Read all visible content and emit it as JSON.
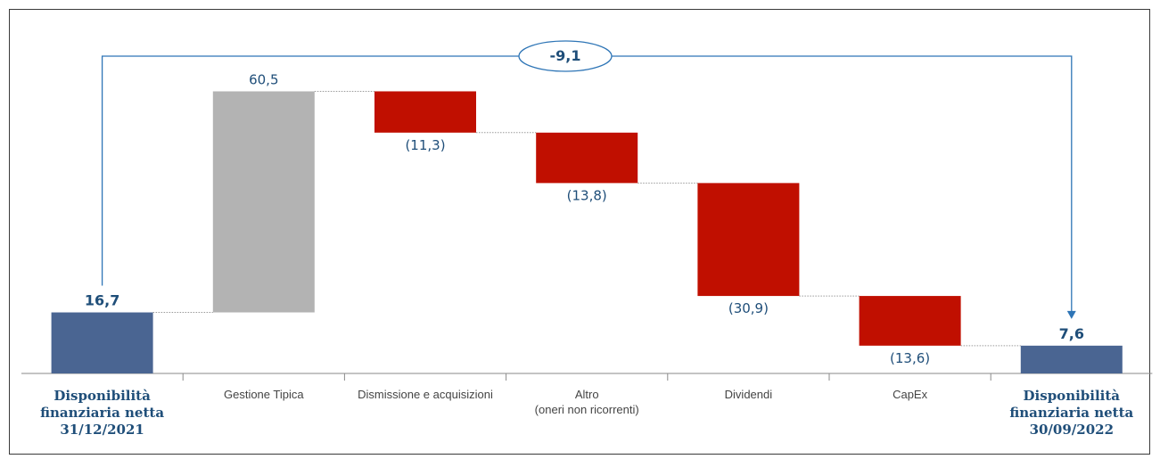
{
  "chart_data": {
    "type": "bar",
    "subtype": "waterfall",
    "categories": [
      [
        "Disponibilità",
        "finanziaria netta",
        "31/12/2021"
      ],
      [
        "Gestione Tipica"
      ],
      [
        "Dismissione e acquisizioni"
      ],
      [
        "Altro",
        "(oneri non ricorrenti)"
      ],
      [
        "Dividendi"
      ],
      [
        "CapEx"
      ],
      [
        "Disponibilità",
        "finanziaria netta",
        "30/09/2022"
      ]
    ],
    "values": [
      16.7,
      60.5,
      -11.3,
      -13.8,
      -30.9,
      -13.6,
      7.6
    ],
    "value_labels": [
      "16,7",
      "60,5",
      "(11,3)",
      "(13,8)",
      "(30,9)",
      "(13,6)",
      "7,6"
    ],
    "kinds": [
      "total",
      "increase",
      "decrease",
      "decrease",
      "decrease",
      "decrease",
      "total"
    ],
    "net_change": {
      "value": -9.1,
      "label": "-9,1"
    },
    "colors": {
      "total": "#4a6592",
      "increase": "#b3b3b3",
      "decrease": "#c00f00",
      "line": "#2e75b6",
      "text": "#1f4e79"
    },
    "grid": false
  }
}
